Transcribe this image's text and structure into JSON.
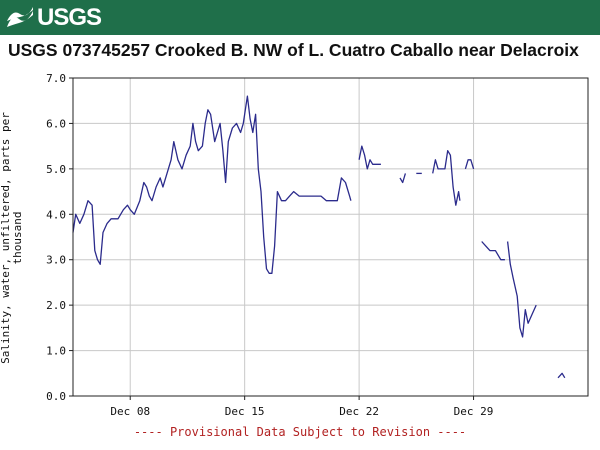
{
  "header": {
    "logo_text": "USGS",
    "logo_icon": "usgs-wave-icon",
    "banner_color": "#1f6f4a"
  },
  "chart_data": {
    "type": "line",
    "title": "USGS 073745257 Crooked B. NW of L. Cuatro Caballo near Delacroix",
    "ylabel_lines": [
      "Salinity, water, unfiltered, parts per",
      "thousand"
    ],
    "xlabel": "",
    "ylim": [
      0,
      7
    ],
    "yticks": [
      "0.0",
      "1.0",
      "2.0",
      "3.0",
      "4.0",
      "5.0",
      "6.0",
      "7.0"
    ],
    "xlim": [
      "2021-12-04T12:00",
      "2022-01-05T00:00"
    ],
    "xticks": [
      {
        "x": "2021-12-08",
        "label": "Dec 08"
      },
      {
        "x": "2021-12-15",
        "label": "Dec 15"
      },
      {
        "x": "2021-12-22",
        "label": "Dec 22"
      },
      {
        "x": "2021-12-29",
        "label": "Dec 29"
      }
    ],
    "grid": true,
    "line_color": "#2b2b8c",
    "series": [
      {
        "segments": [
          [
            [
              "2021-12-04T12:00",
              3.6
            ],
            [
              "2021-12-04T16:00",
              4.0
            ],
            [
              "2021-12-04T22:00",
              3.8
            ],
            [
              "2021-12-05T04:00",
              4.0
            ],
            [
              "2021-12-05T10:00",
              4.3
            ],
            [
              "2021-12-05T16:00",
              4.2
            ],
            [
              "2021-12-05T20:00",
              3.2
            ],
            [
              "2021-12-06T00:00",
              3.0
            ],
            [
              "2021-12-06T04:00",
              2.9
            ],
            [
              "2021-12-06T08:00",
              3.6
            ],
            [
              "2021-12-06T14:00",
              3.8
            ],
            [
              "2021-12-06T20:00",
              3.9
            ],
            [
              "2021-12-07T06:00",
              3.9
            ],
            [
              "2021-12-07T14:00",
              4.1
            ],
            [
              "2021-12-07T20:00",
              4.2
            ],
            [
              "2021-12-08T00:00",
              4.1
            ],
            [
              "2021-12-08T06:00",
              4.0
            ],
            [
              "2021-12-08T14:00",
              4.3
            ],
            [
              "2021-12-08T20:00",
              4.7
            ],
            [
              "2021-12-09T00:00",
              4.6
            ],
            [
              "2021-12-09T04:00",
              4.4
            ],
            [
              "2021-12-09T08:00",
              4.3
            ],
            [
              "2021-12-09T14:00",
              4.6
            ],
            [
              "2021-12-09T20:00",
              4.8
            ],
            [
              "2021-12-10T00:00",
              4.6
            ],
            [
              "2021-12-10T06:00",
              4.9
            ],
            [
              "2021-12-10T12:00",
              5.2
            ],
            [
              "2021-12-10T16:00",
              5.6
            ],
            [
              "2021-12-10T22:00",
              5.2
            ],
            [
              "2021-12-11T04:00",
              5.0
            ],
            [
              "2021-12-11T10:00",
              5.3
            ],
            [
              "2021-12-11T16:00",
              5.5
            ],
            [
              "2021-12-11T20:00",
              6.0
            ],
            [
              "2021-12-12T00:00",
              5.6
            ],
            [
              "2021-12-12T04:00",
              5.4
            ],
            [
              "2021-12-12T10:00",
              5.5
            ],
            [
              "2021-12-12T14:00",
              6.0
            ],
            [
              "2021-12-12T18:00",
              6.3
            ],
            [
              "2021-12-12T22:00",
              6.2
            ],
            [
              "2021-12-13T04:00",
              5.6
            ],
            [
              "2021-12-13T08:00",
              5.8
            ],
            [
              "2021-12-13T12:00",
              6.0
            ],
            [
              "2021-12-13T16:00",
              5.4
            ],
            [
              "2021-12-13T20:00",
              4.7
            ],
            [
              "2021-12-14T00:00",
              5.6
            ],
            [
              "2021-12-14T06:00",
              5.9
            ],
            [
              "2021-12-14T12:00",
              6.0
            ],
            [
              "2021-12-14T18:00",
              5.8
            ],
            [
              "2021-12-14T22:00",
              6.0
            ],
            [
              "2021-12-15T02:00",
              6.4
            ],
            [
              "2021-12-15T04:00",
              6.6
            ],
            [
              "2021-12-15T08:00",
              6.1
            ],
            [
              "2021-12-15T12:00",
              5.8
            ],
            [
              "2021-12-15T16:00",
              6.2
            ],
            [
              "2021-12-15T20:00",
              5.0
            ],
            [
              "2021-12-16T00:00",
              4.5
            ],
            [
              "2021-12-16T04:00",
              3.5
            ],
            [
              "2021-12-16T08:00",
              2.8
            ],
            [
              "2021-12-16T12:00",
              2.7
            ],
            [
              "2021-12-16T16:00",
              2.7
            ],
            [
              "2021-12-16T20:00",
              3.3
            ],
            [
              "2021-12-17T00:00",
              4.5
            ],
            [
              "2021-12-17T06:00",
              4.3
            ],
            [
              "2021-12-17T12:00",
              4.3
            ],
            [
              "2021-12-17T18:00",
              4.4
            ],
            [
              "2021-12-18T00:00",
              4.5
            ],
            [
              "2021-12-18T08:00",
              4.4
            ],
            [
              "2021-12-18T16:00",
              4.4
            ],
            [
              "2021-12-19T00:00",
              4.4
            ],
            [
              "2021-12-19T08:00",
              4.4
            ],
            [
              "2021-12-19T16:00",
              4.4
            ],
            [
              "2021-12-20T00:00",
              4.3
            ],
            [
              "2021-12-20T08:00",
              4.3
            ],
            [
              "2021-12-20T16:00",
              4.3
            ],
            [
              "2021-12-20T22:00",
              4.8
            ],
            [
              "2021-12-21T04:00",
              4.7
            ],
            [
              "2021-12-21T10:00",
              4.4
            ],
            [
              "2021-12-21T12:00",
              4.3
            ]
          ],
          [
            [
              "2021-12-22T00:00",
              5.2
            ],
            [
              "2021-12-22T04:00",
              5.5
            ],
            [
              "2021-12-22T08:00",
              5.3
            ],
            [
              "2021-12-22T12:00",
              5.0
            ],
            [
              "2021-12-22T16:00",
              5.2
            ],
            [
              "2021-12-22T20:00",
              5.1
            ],
            [
              "2021-12-23T02:00",
              5.1
            ],
            [
              "2021-12-23T08:00",
              5.1
            ]
          ],
          [
            [
              "2021-12-24T12:00",
              4.8
            ],
            [
              "2021-12-24T16:00",
              4.7
            ],
            [
              "2021-12-24T20:00",
              4.9
            ]
          ],
          [
            [
              "2021-12-25T12:00",
              4.9
            ],
            [
              "2021-12-25T20:00",
              4.9
            ]
          ],
          [
            [
              "2021-12-26T12:00",
              4.9
            ],
            [
              "2021-12-26T16:00",
              5.2
            ],
            [
              "2021-12-26T20:00",
              5.0
            ],
            [
              "2021-12-27T06:00",
              5.0
            ],
            [
              "2021-12-27T10:00",
              5.4
            ],
            [
              "2021-12-27T14:00",
              5.3
            ],
            [
              "2021-12-27T18:00",
              4.6
            ],
            [
              "2021-12-27T22:00",
              4.2
            ],
            [
              "2021-12-28T02:00",
              4.5
            ],
            [
              "2021-12-28T04:00",
              4.3
            ]
          ],
          [
            [
              "2021-12-28T12:00",
              5.0
            ],
            [
              "2021-12-28T16:00",
              5.2
            ],
            [
              "2021-12-28T20:00",
              5.2
            ],
            [
              "2021-12-29T00:00",
              5.0
            ]
          ],
          [
            [
              "2021-12-29T12:00",
              3.4
            ],
            [
              "2021-12-29T18:00",
              3.3
            ],
            [
              "2021-12-30T00:00",
              3.2
            ],
            [
              "2021-12-30T08:00",
              3.2
            ],
            [
              "2021-12-30T16:00",
              3.0
            ],
            [
              "2021-12-30T22:00",
              3.0
            ]
          ],
          [
            [
              "2021-12-31T02:00",
              3.4
            ],
            [
              "2021-12-31T06:00",
              2.9
            ],
            [
              "2021-12-31T10:00",
              2.6
            ],
            [
              "2021-12-31T16:00",
              2.2
            ],
            [
              "2021-12-31T20:00",
              1.5
            ],
            [
              "2022-01-01T00:00",
              1.3
            ],
            [
              "2022-01-01T04:00",
              1.9
            ],
            [
              "2022-01-01T08:00",
              1.6
            ],
            [
              "2022-01-01T14:00",
              1.8
            ],
            [
              "2022-01-01T20:00",
              2.0
            ]
          ],
          [
            [
              "2022-01-03T04:00",
              0.4
            ],
            [
              "2022-01-03T10:00",
              0.5
            ],
            [
              "2022-01-03T14:00",
              0.4
            ]
          ]
        ]
      }
    ]
  },
  "footer": {
    "note": "---- Provisional Data Subject to Revision ----"
  }
}
